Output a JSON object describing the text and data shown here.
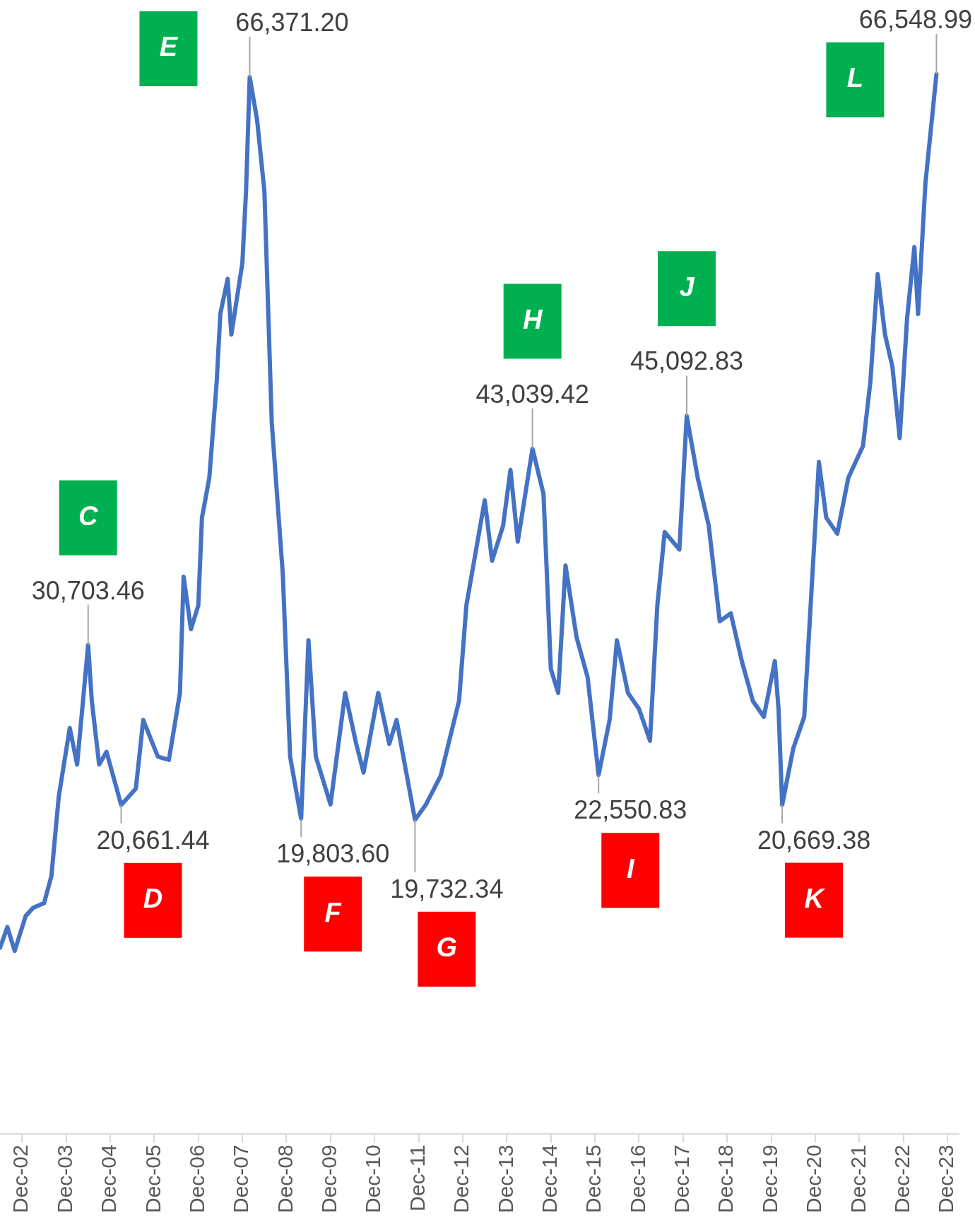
{
  "chart_data": {
    "type": "line",
    "x": [
      "2002-06",
      "2002-08",
      "2002-10",
      "2003-01",
      "2003-03",
      "2003-06",
      "2003-08",
      "2003-10",
      "2004-01",
      "2004-03",
      "2004-06",
      "2004-07",
      "2004-09",
      "2004-11",
      "2005-03",
      "2005-07",
      "2005-09",
      "2006-01",
      "2006-04",
      "2006-07",
      "2006-08",
      "2006-10",
      "2006-12",
      "2007-01",
      "2007-03",
      "2007-05",
      "2007-06",
      "2007-08",
      "2007-09",
      "2007-12",
      "2008-01",
      "2008-02",
      "2008-04",
      "2008-06",
      "2008-08",
      "2008-11",
      "2009-01",
      "2009-04",
      "2009-06",
      "2009-08",
      "2009-12",
      "2010-04",
      "2010-07",
      "2010-09",
      "2011-01",
      "2011-04",
      "2011-06",
      "2011-11",
      "2012-02",
      "2012-06",
      "2012-11",
      "2013-01",
      "2013-06",
      "2013-08",
      "2013-11",
      "2014-01",
      "2014-03",
      "2014-07",
      "2014-10",
      "2014-12",
      "2015-02",
      "2015-04",
      "2015-07",
      "2015-10",
      "2016-01",
      "2016-04",
      "2016-06",
      "2016-09",
      "2016-12",
      "2017-03",
      "2017-05",
      "2017-07",
      "2017-11",
      "2018-01",
      "2018-04",
      "2018-07",
      "2018-10",
      "2019-01",
      "2019-04",
      "2019-07",
      "2019-10",
      "2020-01",
      "2020-02",
      "2020-03",
      "2020-06",
      "2020-09",
      "2020-11",
      "2021-01",
      "2021-03",
      "2021-06",
      "2021-09",
      "2022-01",
      "2022-03",
      "2022-05",
      "2022-07",
      "2022-09",
      "2022-11",
      "2023-01",
      "2023-03",
      "2023-04",
      "2023-06",
      "2023-09"
    ],
    "series": [
      {
        "color": "#4472c4",
        "values": [
          11700,
          13000,
          11500,
          13700,
          14200,
          14500,
          16200,
          21200,
          25500,
          23200,
          30703.46,
          27200,
          23200,
          24000,
          20661.44,
          21700,
          26000,
          23700,
          23500,
          27700,
          35000,
          31700,
          33200,
          38700,
          41200,
          47200,
          51500,
          53700,
          50200,
          54700,
          59200,
          66371.2,
          63700,
          59200,
          44700,
          35200,
          23700,
          19803.6,
          31000,
          23700,
          20700,
          27700,
          24500,
          22700,
          27700,
          24500,
          26000,
          19732.34,
          20700,
          22500,
          27200,
          33200,
          39800,
          36000,
          38200,
          41700,
          37200,
          43039.42,
          40200,
          29200,
          27700,
          35700,
          31200,
          28700,
          22550.83,
          26000,
          31000,
          27700,
          26700,
          24700,
          33200,
          37800,
          36700,
          45092.83,
          41200,
          38200,
          32200,
          32700,
          29700,
          27200,
          26200,
          29700,
          26700,
          20669.38,
          24200,
          26200,
          34200,
          42200,
          38700,
          37700,
          41200,
          43200,
          47200,
          54000,
          50200,
          48200,
          43700,
          51200,
          55700,
          51500,
          59700,
          66548.99
        ],
        "value_labels": [
          null,
          null,
          null,
          null,
          null,
          null,
          null,
          null,
          null,
          null,
          "30,703.46",
          null,
          null,
          null,
          "20,661.44",
          null,
          null,
          null,
          null,
          null,
          null,
          null,
          null,
          null,
          null,
          null,
          null,
          null,
          null,
          null,
          null,
          "66,371.20",
          null,
          null,
          null,
          null,
          null,
          "19,803.60",
          null,
          null,
          null,
          null,
          null,
          null,
          null,
          null,
          null,
          "19,732.34",
          null,
          null,
          null,
          null,
          null,
          null,
          null,
          null,
          null,
          "43,039.42",
          null,
          null,
          null,
          null,
          null,
          null,
          "22,550.83",
          null,
          null,
          null,
          null,
          null,
          null,
          null,
          null,
          "45,092.83",
          null,
          null,
          null,
          null,
          null,
          null,
          null,
          null,
          null,
          "20,669.38",
          null,
          null,
          null,
          null,
          null,
          null,
          null,
          null,
          null,
          null,
          null,
          null,
          null,
          null,
          null,
          null,
          null,
          "66,548.99"
        ]
      }
    ],
    "xlim": [
      "2002-06",
      "2024-03"
    ],
    "xticks": [
      {
        "value": "2002-12",
        "label": "Dec-02"
      },
      {
        "value": "2003-12",
        "label": "Dec-03"
      },
      {
        "value": "2004-12",
        "label": "Dec-04"
      },
      {
        "value": "2005-12",
        "label": "Dec-05"
      },
      {
        "value": "2006-12",
        "label": "Dec-06"
      },
      {
        "value": "2007-12",
        "label": "Dec-07"
      },
      {
        "value": "2008-12",
        "label": "Dec-08"
      },
      {
        "value": "2009-12",
        "label": "Dec-09"
      },
      {
        "value": "2010-12",
        "label": "Dec-10"
      },
      {
        "value": "2011-12",
        "label": "Dec-11"
      },
      {
        "value": "2012-12",
        "label": "Dec-12"
      },
      {
        "value": "2013-12",
        "label": "Dec-13"
      },
      {
        "value": "2014-12",
        "label": "Dec-14"
      },
      {
        "value": "2015-12",
        "label": "Dec-15"
      },
      {
        "value": "2016-12",
        "label": "Dec-16"
      },
      {
        "value": "2017-12",
        "label": "Dec-17"
      },
      {
        "value": "2018-12",
        "label": "Dec-18"
      },
      {
        "value": "2019-12",
        "label": "Dec-19"
      },
      {
        "value": "2020-12",
        "label": "Dec-20"
      },
      {
        "value": "2021-12",
        "label": "Dec-21"
      },
      {
        "value": "2022-12",
        "label": "Dec-22"
      },
      {
        "value": "2023-12",
        "label": "Dec-23"
      }
    ],
    "tick_labels": "x",
    "annotations": [
      "C",
      "D",
      "E",
      "F",
      "G",
      "H",
      "I",
      "J",
      "K",
      "L"
    ]
  }
}
